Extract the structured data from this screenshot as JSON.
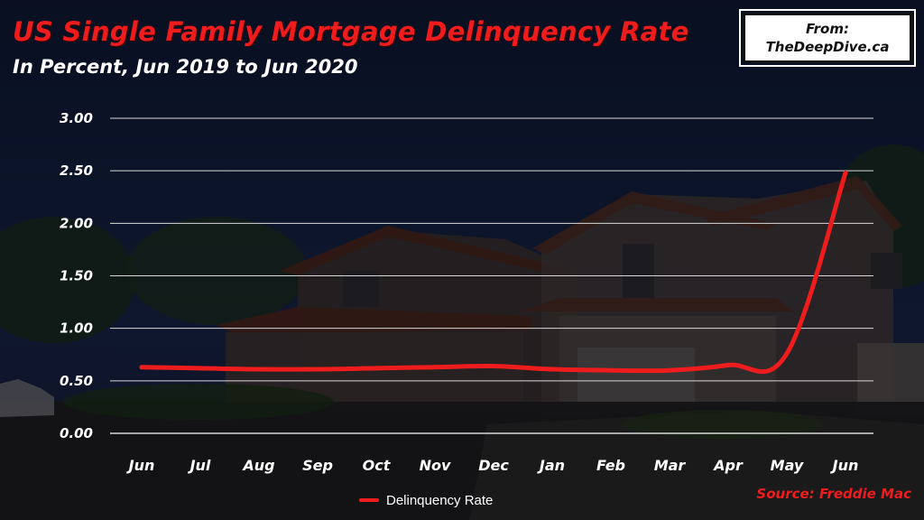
{
  "header": {
    "title": "US Single Family Mortgage Delinquency Rate",
    "subtitle": "In Percent, Jun 2019 to Jun 2020"
  },
  "badge": {
    "line1": "From:",
    "line2": "TheDeepDive.ca"
  },
  "source": "Source: Freddie Mac",
  "colors": {
    "series": "#ee1c1c",
    "grid": "#d8d8d8",
    "text": "#ffffff",
    "background": "#0f1a33"
  },
  "chart_data": {
    "type": "line",
    "title": "US Single Family Mortgage Delinquency Rate",
    "subtitle": "In Percent, Jun 2019 to Jun 2020",
    "categories": [
      "Jun",
      "Jul",
      "Aug",
      "Sep",
      "Oct",
      "Nov",
      "Dec",
      "Jan",
      "Feb",
      "Mar",
      "Apr",
      "May",
      "Jun"
    ],
    "series": [
      {
        "name": "Delinquency Rate",
        "values": [
          0.63,
          0.62,
          0.61,
          0.61,
          0.62,
          0.63,
          0.64,
          0.61,
          0.6,
          0.6,
          0.65,
          0.76,
          2.48
        ]
      }
    ],
    "yticks": [
      "0.00",
      "0.50",
      "1.00",
      "1.50",
      "2.00",
      "2.50",
      "3.00"
    ],
    "ylim": [
      0,
      3
    ],
    "grid": true,
    "legend": "bottom-center"
  }
}
